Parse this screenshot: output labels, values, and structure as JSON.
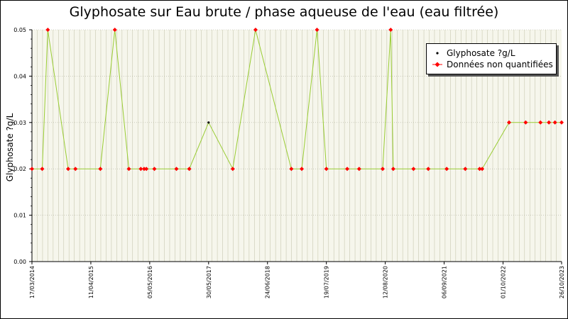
{
  "chart_data": {
    "type": "line",
    "title": "Glyphosate sur Eau brute / phase aqueuse de l'eau (eau filtrée)",
    "ylabel": "Glyphosate ?g/L",
    "xlabel": "",
    "ylim": [
      0,
      0.05
    ],
    "yticks": [
      0.0,
      0.01,
      0.02,
      0.03,
      0.04,
      0.05
    ],
    "ytick_labels": [
      "0.00",
      "0.01",
      "0.02",
      "0.03",
      "0.04",
      "0.05"
    ],
    "xlim": [
      "2014-03-17",
      "2023-10-24"
    ],
    "xticks": [
      "2014-03-17",
      "2015-04-11",
      "2016-05-05",
      "2017-05-30",
      "2018-06-24",
      "2019-07-19",
      "2020-08-12",
      "2021-09-06",
      "2022-10-01",
      "2023-10-26"
    ],
    "xtick_labels": [
      "17/03/2014",
      "11/04/2015",
      "05/05/2016",
      "30/05/2017",
      "24/06/2018",
      "19/07/2019",
      "12/08/2020",
      "06/09/2021",
      "01/10/2022",
      "26/10/2023"
    ],
    "grid": true,
    "legend": "top-right",
    "colors": {
      "line": "#99cc33",
      "quantified": "#000000",
      "non_quantified": "#ff0000",
      "grid": "#c8c8b0",
      "plot_bg": "#f6f6ec"
    },
    "series": [
      {
        "name": "Glyphosate ?g/L",
        "points": [
          {
            "x": "2014-03-17",
            "y": 0.02,
            "q": false
          },
          {
            "x": "2014-05-24",
            "y": 0.02,
            "q": false
          },
          {
            "x": "2014-06-30",
            "y": 0.05,
            "q": false
          },
          {
            "x": "2014-11-12",
            "y": 0.02,
            "q": false
          },
          {
            "x": "2014-12-30",
            "y": 0.02,
            "q": false
          },
          {
            "x": "2015-06-13",
            "y": 0.02,
            "q": false
          },
          {
            "x": "2015-09-17",
            "y": 0.05,
            "q": false
          },
          {
            "x": "2015-12-19",
            "y": 0.02,
            "q": false
          },
          {
            "x": "2016-03-07",
            "y": 0.02,
            "q": false
          },
          {
            "x": "2016-03-29",
            "y": 0.02,
            "q": false
          },
          {
            "x": "2016-04-13",
            "y": 0.02,
            "q": false
          },
          {
            "x": "2016-06-05",
            "y": 0.02,
            "q": false
          },
          {
            "x": "2016-10-29",
            "y": 0.02,
            "q": false
          },
          {
            "x": "2017-01-22",
            "y": 0.02,
            "q": false
          },
          {
            "x": "2017-05-30",
            "y": 0.03,
            "q": true
          },
          {
            "x": "2017-11-06",
            "y": 0.02,
            "q": false
          },
          {
            "x": "2018-04-06",
            "y": 0.05,
            "q": false
          },
          {
            "x": "2018-11-29",
            "y": 0.02,
            "q": false
          },
          {
            "x": "2019-02-06",
            "y": 0.02,
            "q": false
          },
          {
            "x": "2019-05-18",
            "y": 0.05,
            "q": false
          },
          {
            "x": "2019-07-19",
            "y": 0.02,
            "q": false
          },
          {
            "x": "2019-12-04",
            "y": 0.02,
            "q": false
          },
          {
            "x": "2020-02-21",
            "y": 0.02,
            "q": false
          },
          {
            "x": "2020-07-26",
            "y": 0.02,
            "q": false
          },
          {
            "x": "2020-09-17",
            "y": 0.05,
            "q": false
          },
          {
            "x": "2020-10-04",
            "y": 0.02,
            "q": false
          },
          {
            "x": "2021-02-15",
            "y": 0.02,
            "q": false
          },
          {
            "x": "2021-05-24",
            "y": 0.02,
            "q": false
          },
          {
            "x": "2021-09-23",
            "y": 0.02,
            "q": false
          },
          {
            "x": "2022-01-24",
            "y": 0.02,
            "q": false
          },
          {
            "x": "2022-04-29",
            "y": 0.02,
            "q": false
          },
          {
            "x": "2022-05-16",
            "y": 0.02,
            "q": false
          },
          {
            "x": "2022-11-10",
            "y": 0.03,
            "q": false
          },
          {
            "x": "2023-02-28",
            "y": 0.03,
            "q": false
          },
          {
            "x": "2023-06-06",
            "y": 0.03,
            "q": false
          },
          {
            "x": "2023-08-01",
            "y": 0.03,
            "q": false
          },
          {
            "x": "2023-09-10",
            "y": 0.03,
            "q": false
          },
          {
            "x": "2023-10-24",
            "y": 0.03,
            "q": false
          }
        ]
      }
    ]
  },
  "legend": {
    "quantified_label": "Glyphosate ?g/L",
    "non_quantified_label": "Données non quantifiées"
  }
}
